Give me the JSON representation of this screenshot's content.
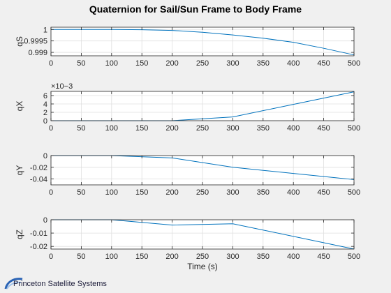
{
  "figure": {
    "title": "Quaternion for Sail/Sun Frame to Body Frame",
    "logo_text": "Princeton Satellite Systems"
  },
  "colors": {
    "line": "#0072bd",
    "grid": "#dfdfdf",
    "axes_bg": "#ffffff",
    "figure_bg": "#f0f0f0",
    "axis": "#262626"
  },
  "chart_data": [
    {
      "type": "line",
      "ylabel": "qS",
      "xlabel": "",
      "xlim": [
        0,
        500
      ],
      "ylim": [
        0.99885,
        1.0001
      ],
      "xticks": [
        0,
        50,
        100,
        150,
        200,
        250,
        300,
        350,
        400,
        450,
        500
      ],
      "yticks": [
        0.999,
        0.9995,
        1
      ],
      "ytick_labels": [
        "0.999",
        "0.9995",
        "1"
      ],
      "exponent_label": "",
      "grid": true,
      "series": [
        {
          "x": [
            0,
            100,
            150,
            200,
            250,
            300,
            350,
            400,
            450,
            500
          ],
          "y": [
            1,
            1,
            0.99999,
            0.99996,
            0.99988,
            0.99976,
            0.99962,
            0.99944,
            0.99918,
            0.99889
          ]
        }
      ]
    },
    {
      "type": "line",
      "ylabel": "qX",
      "xlabel": "",
      "xlim": [
        0,
        500
      ],
      "ylim": [
        0,
        7
      ],
      "xticks": [
        0,
        50,
        100,
        150,
        200,
        250,
        300,
        350,
        400,
        450,
        500
      ],
      "yticks": [
        0,
        2,
        4,
        6
      ],
      "ytick_labels": [
        "0",
        "2",
        "4",
        "6"
      ],
      "exponent_label": "×10−3",
      "grid": true,
      "series": [
        {
          "x": [
            0,
            200,
            300,
            400,
            500
          ],
          "y": [
            0,
            0,
            0.9,
            3.9,
            6.9
          ]
        }
      ]
    },
    {
      "type": "line",
      "ylabel": "qY",
      "xlabel": "",
      "xlim": [
        0,
        500
      ],
      "ylim": [
        -0.05,
        0
      ],
      "xticks": [
        0,
        50,
        100,
        150,
        200,
        250,
        300,
        350,
        400,
        450,
        500
      ],
      "yticks": [
        -0.04,
        -0.02,
        0
      ],
      "ytick_labels": [
        "-0.04",
        "-0.02",
        "0"
      ],
      "exponent_label": "",
      "grid": true,
      "series": [
        {
          "x": [
            0,
            100,
            200,
            300,
            500
          ],
          "y": [
            0,
            0,
            -0.004,
            -0.02,
            -0.041
          ]
        }
      ]
    },
    {
      "type": "line",
      "ylabel": "qZ",
      "xlabel": "Time (s)",
      "xlim": [
        0,
        500
      ],
      "ylim": [
        -0.022,
        0
      ],
      "xticks": [
        0,
        50,
        100,
        150,
        200,
        250,
        300,
        350,
        400,
        450,
        500
      ],
      "yticks": [
        -0.02,
        -0.01,
        0
      ],
      "ytick_labels": [
        "-0.02",
        "-0.01",
        "0"
      ],
      "exponent_label": "",
      "grid": true,
      "series": [
        {
          "x": [
            0,
            100,
            200,
            300,
            500
          ],
          "y": [
            0,
            0,
            -0.004,
            -0.003,
            -0.022
          ]
        }
      ]
    }
  ]
}
